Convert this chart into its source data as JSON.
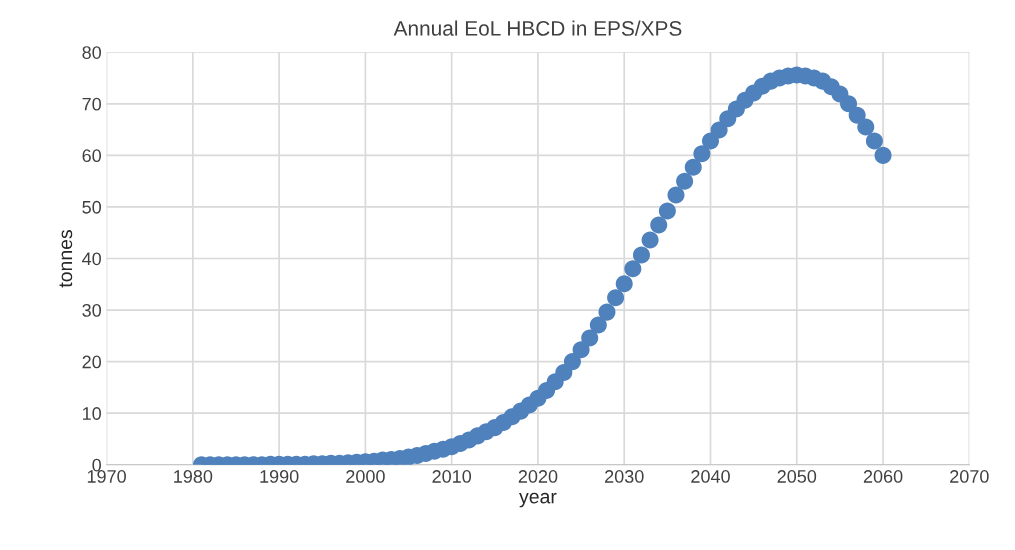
{
  "chart_data": {
    "type": "scatter",
    "title": "Annual EoL HBCD in EPS/XPS",
    "xlabel": "year",
    "ylabel": "tonnes",
    "x": [
      1981,
      1982,
      1983,
      1984,
      1985,
      1986,
      1987,
      1988,
      1989,
      1990,
      1991,
      1992,
      1993,
      1994,
      1995,
      1996,
      1997,
      1998,
      1999,
      2000,
      2001,
      2002,
      2003,
      2004,
      2005,
      2006,
      2007,
      2008,
      2009,
      2010,
      2011,
      2012,
      2013,
      2014,
      2015,
      2016,
      2017,
      2018,
      2019,
      2020,
      2021,
      2022,
      2023,
      2024,
      2025,
      2026,
      2027,
      2028,
      2029,
      2030,
      2031,
      2032,
      2033,
      2034,
      2035,
      2036,
      2037,
      2038,
      2039,
      2040,
      2041,
      2042,
      2043,
      2044,
      2045,
      2046,
      2047,
      2048,
      2049,
      2050,
      2051,
      2052,
      2053,
      2054,
      2055,
      2056,
      2057,
      2058,
      2059,
      2060
    ],
    "series": [
      {
        "color": "#4f81bd",
        "values": [
          0,
          0,
          0,
          0,
          0,
          0,
          0,
          0,
          0.1,
          0.1,
          0.1,
          0.1,
          0.1,
          0.2,
          0.2,
          0.3,
          0.3,
          0.4,
          0.5,
          0.6,
          0.7,
          0.9,
          1.0,
          1.2,
          1.5,
          1.8,
          2.2,
          2.6,
          3.0,
          3.5,
          4.1,
          4.8,
          5.6,
          6.4,
          7.2,
          8.2,
          9.3,
          10.4,
          11.6,
          12.9,
          14.4,
          16.1,
          17.9,
          20.0,
          22.3,
          24.6,
          27.1,
          29.6,
          32.4,
          35.1,
          38.0,
          40.7,
          43.6,
          46.5,
          49.2,
          52.3,
          55.0,
          57.7,
          60.3,
          62.8,
          64.9,
          67.1,
          69.0,
          70.7,
          72.1,
          73.4,
          74.4,
          75.0,
          75.4,
          75.6,
          75.4,
          75.0,
          74.4,
          73.3,
          71.9,
          70.0,
          67.8,
          65.5,
          62.8,
          60.0
        ]
      }
    ],
    "xlim": [
      1970,
      2070
    ],
    "xticks": [
      1970,
      1980,
      1990,
      2000,
      2010,
      2020,
      2030,
      2040,
      2050,
      2060,
      2070
    ],
    "ylim": [
      0,
      80
    ],
    "yticks": [
      0,
      10,
      20,
      30,
      40,
      50,
      60,
      70,
      80
    ],
    "grid": true,
    "marker": "circle"
  }
}
